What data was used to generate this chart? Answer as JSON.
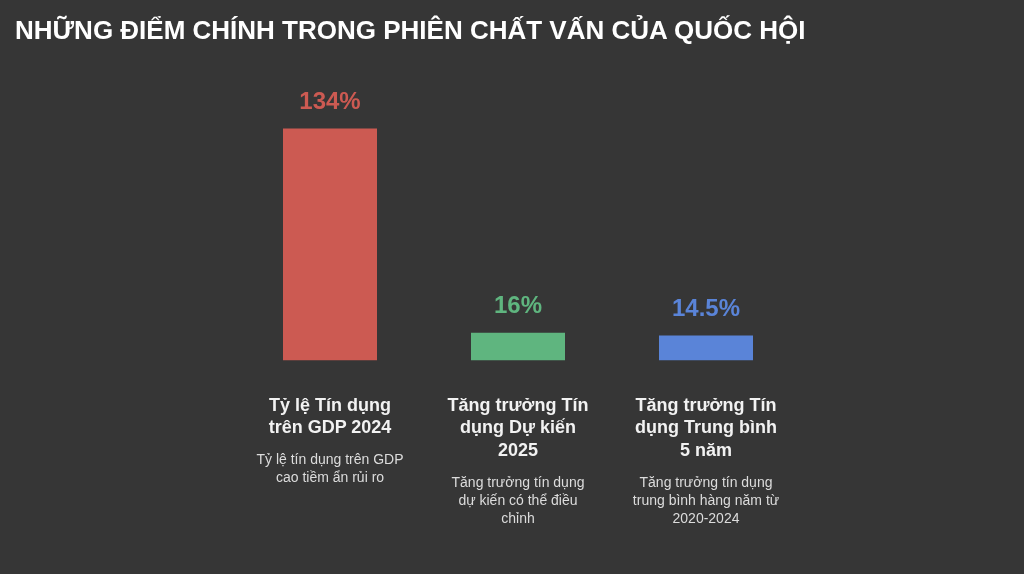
{
  "chart_data": {
    "type": "bar",
    "title": "NHỮNG ĐIỂM CHÍNH TRONG PHIÊN CHẤT VẤN CỦA QUỐC HỘI",
    "categories": [
      "Tỷ lệ Tín dụng trên GDP 2024",
      "Tăng trưởng Tín dụng Dự kiến 2025",
      "Tăng trưởng Tín dụng Trung bình 5 năm"
    ],
    "values": [
      134,
      16,
      14.5
    ],
    "colors": [
      "#cc5a52",
      "#5fb57f",
      "#5a84d8"
    ],
    "value_labels": [
      "134%",
      "16%",
      "14.5%"
    ],
    "annotations": [
      "Tỷ lệ tín dụng trên GDP cao tiềm ẩn rủi ro",
      "Tăng trưởng tín dụng dự kiến có thể điều chỉnh",
      "Tăng trưởng tín dụng trung bình hàng năm từ 2020-2024"
    ],
    "tick_labels": "x"
  }
}
